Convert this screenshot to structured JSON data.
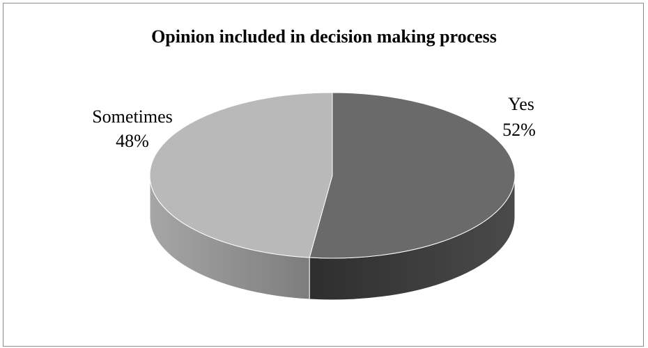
{
  "chart_data": {
    "type": "pie",
    "title": "Opinion included in decision making process",
    "slices": [
      {
        "label": "Yes",
        "value": 52,
        "value_label": "52%",
        "color": "#6a6a6a",
        "side_color": "#3a3a3a"
      },
      {
        "label": "Sometimes",
        "value": 48,
        "value_label": "48%",
        "color": "#b9b9b9",
        "side_color": "#8e8e8e"
      }
    ],
    "legend": "none",
    "style": "3d"
  }
}
